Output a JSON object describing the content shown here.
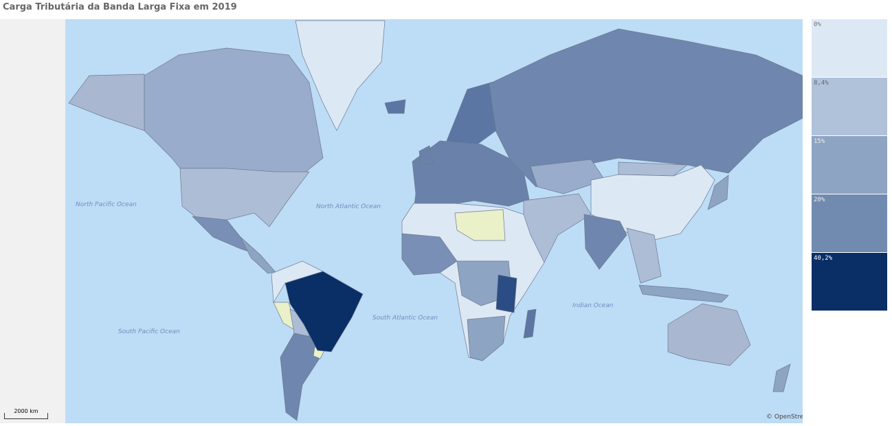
{
  "title": "Carga Tributária da Banda Larga Fixa em 2019",
  "oceans": {
    "north_pacific": "North Pacific Ocean",
    "north_atlantic": "North Atlantic Ocean",
    "south_atlantic": "South Atlantic Ocean",
    "south_pacific": "South Pacific Ocean",
    "indian": "Indian Ocean"
  },
  "scale_bar": "2000 km",
  "attribution": "© OpenStreetMap",
  "legend": [
    {
      "label": "0%",
      "color": "#dde8f5",
      "text_color": "#777"
    },
    {
      "label": "8,4%",
      "color": "#b0c2da",
      "text_color": "#666"
    },
    {
      "label": "15%",
      "color": "#8ea4c3",
      "text_color": "#eee"
    },
    {
      "label": "20%",
      "color": "#718bb0",
      "text_color": "#eee"
    },
    {
      "label": "40,2%",
      "color": "#0a2e66",
      "text_color": "#fff"
    }
  ],
  "colors": {
    "ocean": "#bddcf6",
    "no_data": "#eaf0c8"
  }
}
